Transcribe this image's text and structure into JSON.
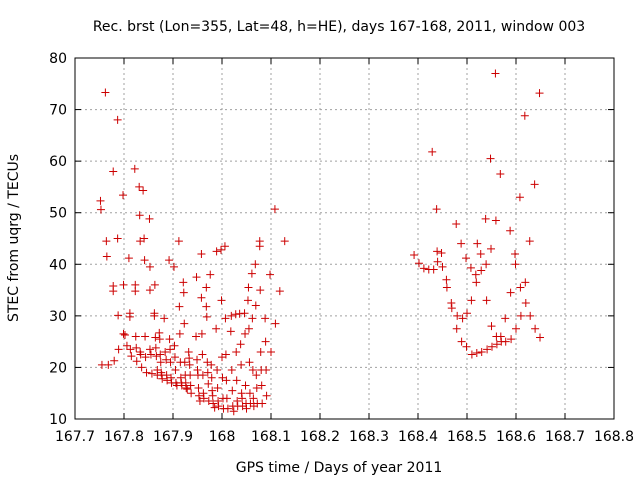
{
  "chart_data": {
    "type": "scatter",
    "title": "Rec. brst (Lon=355, Lat=48, h=HE), days 167-168, 2011, window 003",
    "xlabel": "GPS time / Days of year 2011",
    "ylabel": "STEC from uqrg / TECUs",
    "xlim": [
      167.7,
      168.8
    ],
    "ylim": [
      10,
      80
    ],
    "x_ticks": [
      "167.7",
      "167.8",
      "167.9",
      "168",
      "168.1",
      "168.2",
      "168.3",
      "168.4",
      "168.5",
      "168.6",
      "168.7",
      "168.8"
    ],
    "y_ticks": [
      "10",
      "20",
      "30",
      "40",
      "50",
      "60",
      "70",
      "80"
    ],
    "grid": true,
    "marker": "+",
    "marker_color": "#cc0000",
    "series": [
      {
        "points": [
          [
            167.752,
            52.3
          ],
          [
            167.753,
            50.6
          ],
          [
            167.755,
            20.5
          ],
          [
            167.762,
            73.3
          ],
          [
            167.764,
            44.5
          ],
          [
            167.765,
            41.5
          ],
          [
            167.768,
            20.5
          ],
          [
            167.778,
            58.0
          ],
          [
            167.778,
            35.8
          ],
          [
            167.778,
            34.8
          ],
          [
            167.78,
            21.3
          ],
          [
            167.787,
            68.0
          ],
          [
            167.787,
            45.0
          ],
          [
            167.788,
            30.1
          ],
          [
            167.789,
            23.5
          ],
          [
            167.798,
            53.4
          ],
          [
            167.799,
            36.0
          ],
          [
            167.799,
            26.5
          ],
          [
            167.802,
            26.3
          ],
          [
            167.806,
            24.2
          ],
          [
            167.81,
            41.2
          ],
          [
            167.812,
            30.5
          ],
          [
            167.812,
            29.8
          ],
          [
            167.813,
            23.5
          ],
          [
            167.815,
            22.2
          ],
          [
            167.822,
            58.5
          ],
          [
            167.823,
            36.0
          ],
          [
            167.823,
            34.8
          ],
          [
            167.824,
            26.0
          ],
          [
            167.825,
            23.8
          ],
          [
            167.826,
            21.2
          ],
          [
            167.831,
            55.0
          ],
          [
            167.832,
            49.5
          ],
          [
            167.833,
            44.5
          ],
          [
            167.833,
            23.0
          ],
          [
            167.834,
            22.5
          ],
          [
            167.836,
            20.0
          ],
          [
            167.839,
            54.3
          ],
          [
            167.841,
            45.0
          ],
          [
            167.842,
            40.8
          ],
          [
            167.843,
            26.0
          ],
          [
            167.844,
            22.0
          ],
          [
            167.846,
            19.0
          ],
          [
            167.852,
            48.8
          ],
          [
            167.853,
            39.5
          ],
          [
            167.853,
            35.0
          ],
          [
            167.853,
            23.5
          ],
          [
            167.855,
            22.5
          ],
          [
            167.857,
            18.8
          ],
          [
            167.862,
            30.5
          ],
          [
            167.862,
            30.0
          ],
          [
            167.863,
            36.0
          ],
          [
            167.864,
            25.8
          ],
          [
            167.865,
            23.8
          ],
          [
            167.866,
            22.2
          ],
          [
            167.868,
            19.5
          ],
          [
            167.868,
            18.5
          ],
          [
            167.872,
            26.7
          ],
          [
            167.873,
            25.5
          ],
          [
            167.874,
            22.5
          ],
          [
            167.875,
            21.0
          ],
          [
            167.876,
            19.0
          ],
          [
            167.877,
            18.5
          ],
          [
            167.878,
            17.8
          ],
          [
            167.882,
            29.5
          ],
          [
            167.884,
            23.0
          ],
          [
            167.886,
            21.5
          ],
          [
            167.887,
            18.5
          ],
          [
            167.888,
            17.5
          ],
          [
            167.892,
            40.8
          ],
          [
            167.893,
            25.5
          ],
          [
            167.894,
            23.5
          ],
          [
            167.895,
            21.0
          ],
          [
            167.896,
            18.0
          ],
          [
            167.897,
            17.0
          ],
          [
            167.902,
            39.5
          ],
          [
            167.903,
            24.2
          ],
          [
            167.904,
            22.0
          ],
          [
            167.905,
            19.5
          ],
          [
            167.906,
            17.0
          ],
          [
            167.908,
            16.5
          ],
          [
            167.912,
            44.5
          ],
          [
            167.913,
            31.8
          ],
          [
            167.914,
            26.5
          ],
          [
            167.915,
            21.0
          ],
          [
            167.916,
            18.0
          ],
          [
            167.917,
            17.0
          ],
          [
            167.918,
            16.5
          ],
          [
            167.921,
            36.5
          ],
          [
            167.922,
            34.5
          ],
          [
            167.923,
            28.5
          ],
          [
            167.924,
            21.0
          ],
          [
            167.925,
            18.5
          ],
          [
            167.926,
            17.0
          ],
          [
            167.927,
            16.0
          ],
          [
            167.929,
            15.8
          ],
          [
            167.932,
            23.0
          ],
          [
            167.933,
            21.8
          ],
          [
            167.934,
            20.5
          ],
          [
            167.935,
            18.5
          ],
          [
            167.936,
            16.5
          ],
          [
            167.937,
            15.0
          ],
          [
            167.947,
            26.0
          ],
          [
            167.948,
            37.5
          ],
          [
            167.949,
            21.5
          ],
          [
            167.95,
            19.5
          ],
          [
            167.951,
            18.5
          ],
          [
            167.952,
            16.0
          ],
          [
            167.953,
            14.5
          ],
          [
            167.955,
            13.5
          ],
          [
            167.958,
            42.0
          ],
          [
            167.958,
            33.5
          ],
          [
            167.959,
            26.5
          ],
          [
            167.96,
            22.5
          ],
          [
            167.961,
            18.5
          ],
          [
            167.962,
            15.0
          ],
          [
            167.963,
            14.0
          ],
          [
            167.968,
            35.5
          ],
          [
            167.968,
            31.8
          ],
          [
            167.969,
            29.8
          ],
          [
            167.97,
            21.0
          ],
          [
            167.971,
            19.0
          ],
          [
            167.972,
            16.8
          ],
          [
            167.973,
            13.5
          ],
          [
            167.976,
            38.0
          ],
          [
            167.978,
            20.5
          ],
          [
            167.979,
            18.0
          ],
          [
            167.98,
            15.5
          ],
          [
            167.981,
            14.5
          ],
          [
            167.982,
            13.0
          ],
          [
            167.985,
            12.2
          ],
          [
            167.988,
            27.5
          ],
          [
            167.989,
            42.5
          ],
          [
            167.99,
            19.5
          ],
          [
            167.991,
            16.0
          ],
          [
            167.992,
            13.5
          ],
          [
            167.993,
            12.5
          ],
          [
            167.998,
            42.8
          ],
          [
            167.999,
            33.0
          ],
          [
            168.0,
            22.0
          ],
          [
            168.001,
            18.0
          ],
          [
            168.002,
            14.0
          ],
          [
            168.003,
            12.0
          ],
          [
            168.006,
            43.5
          ],
          [
            168.007,
            29.5
          ],
          [
            168.008,
            22.5
          ],
          [
            168.009,
            17.5
          ],
          [
            168.01,
            14.0
          ],
          [
            168.012,
            12.0
          ],
          [
            168.018,
            27.0
          ],
          [
            168.019,
            30.0
          ],
          [
            168.02,
            19.5
          ],
          [
            168.021,
            15.5
          ],
          [
            168.022,
            12.5
          ],
          [
            168.024,
            11.5
          ],
          [
            168.028,
            30.3
          ],
          [
            168.029,
            23.0
          ],
          [
            168.03,
            17.5
          ],
          [
            168.031,
            13.5
          ],
          [
            168.032,
            12.5
          ],
          [
            168.036,
            30.4
          ],
          [
            168.038,
            24.5
          ],
          [
            168.039,
            20.5
          ],
          [
            168.04,
            15.0
          ],
          [
            168.041,
            14.0
          ],
          [
            168.042,
            12.5
          ],
          [
            168.046,
            30.5
          ],
          [
            168.047,
            26.5
          ],
          [
            168.048,
            16.5
          ],
          [
            168.049,
            13.0
          ],
          [
            168.05,
            12.0
          ],
          [
            168.053,
            33.0
          ],
          [
            168.054,
            35.5
          ],
          [
            168.055,
            27.5
          ],
          [
            168.056,
            21.0
          ],
          [
            168.057,
            15.0
          ],
          [
            168.058,
            13.0
          ],
          [
            168.061,
            38.2
          ],
          [
            168.062,
            29.5
          ],
          [
            168.063,
            19.5
          ],
          [
            168.064,
            14.0
          ],
          [
            168.065,
            12.5
          ],
          [
            168.068,
            40.0
          ],
          [
            168.069,
            32.0
          ],
          [
            168.07,
            18.5
          ],
          [
            168.071,
            16.0
          ],
          [
            168.072,
            13.0
          ],
          [
            168.077,
            44.5
          ],
          [
            168.077,
            43.5
          ],
          [
            168.078,
            35.0
          ],
          [
            168.079,
            23.0
          ],
          [
            168.08,
            19.5
          ],
          [
            168.081,
            16.5
          ],
          [
            168.082,
            13.0
          ],
          [
            168.088,
            29.5
          ],
          [
            168.089,
            25.0
          ],
          [
            168.09,
            19.5
          ],
          [
            168.091,
            14.5
          ],
          [
            168.098,
            38.0
          ],
          [
            168.1,
            23.0
          ],
          [
            168.108,
            50.7
          ],
          [
            168.109,
            28.5
          ],
          [
            168.118,
            34.8
          ],
          [
            168.128,
            44.5
          ]
        ]
      },
      {
        "points": [
          [
            168.392,
            41.8
          ],
          [
            168.402,
            40.2
          ],
          [
            168.412,
            39.2
          ],
          [
            168.422,
            39.0
          ],
          [
            168.429,
            61.8
          ],
          [
            168.432,
            39.0
          ],
          [
            168.438,
            50.7
          ],
          [
            168.439,
            42.5
          ],
          [
            168.44,
            40.5
          ],
          [
            168.448,
            42.2
          ],
          [
            168.45,
            39.5
          ],
          [
            168.458,
            37.0
          ],
          [
            168.459,
            35.5
          ],
          [
            168.468,
            32.5
          ],
          [
            168.469,
            31.5
          ],
          [
            168.478,
            47.8
          ],
          [
            168.479,
            27.5
          ],
          [
            168.48,
            30.0
          ],
          [
            168.488,
            44.0
          ],
          [
            168.489,
            25.0
          ],
          [
            168.491,
            29.5
          ],
          [
            168.498,
            41.2
          ],
          [
            168.499,
            24.0
          ],
          [
            168.5,
            30.5
          ],
          [
            168.508,
            39.3
          ],
          [
            168.509,
            33.0
          ],
          [
            168.51,
            22.5
          ],
          [
            168.518,
            38.0
          ],
          [
            168.519,
            36.5
          ],
          [
            168.52,
            22.8
          ],
          [
            168.521,
            44.0
          ],
          [
            168.528,
            42.0
          ],
          [
            168.529,
            38.8
          ],
          [
            168.53,
            23.0
          ],
          [
            168.538,
            48.8
          ],
          [
            168.539,
            40.0
          ],
          [
            168.54,
            33.0
          ],
          [
            168.541,
            23.5
          ],
          [
            168.548,
            60.5
          ],
          [
            168.549,
            43.0
          ],
          [
            168.55,
            28.0
          ],
          [
            168.551,
            24.0
          ],
          [
            168.558,
            77.0
          ],
          [
            168.559,
            48.5
          ],
          [
            168.56,
            26.0
          ],
          [
            168.561,
            24.5
          ],
          [
            168.568,
            57.5
          ],
          [
            168.569,
            26.0
          ],
          [
            168.57,
            25.0
          ],
          [
            168.578,
            29.5
          ],
          [
            168.579,
            25.0
          ],
          [
            168.588,
            46.5
          ],
          [
            168.589,
            34.5
          ],
          [
            168.59,
            25.5
          ],
          [
            168.598,
            42.0
          ],
          [
            168.599,
            40.0
          ],
          [
            168.6,
            27.5
          ],
          [
            168.608,
            53.0
          ],
          [
            168.609,
            35.5
          ],
          [
            168.61,
            30.0
          ],
          [
            168.618,
            68.8
          ],
          [
            168.619,
            36.5
          ],
          [
            168.62,
            32.5
          ],
          [
            168.628,
            44.5
          ],
          [
            168.629,
            30.0
          ],
          [
            168.638,
            55.5
          ],
          [
            168.639,
            27.5
          ],
          [
            168.648,
            73.2
          ],
          [
            168.649,
            25.8
          ]
        ]
      }
    ]
  }
}
